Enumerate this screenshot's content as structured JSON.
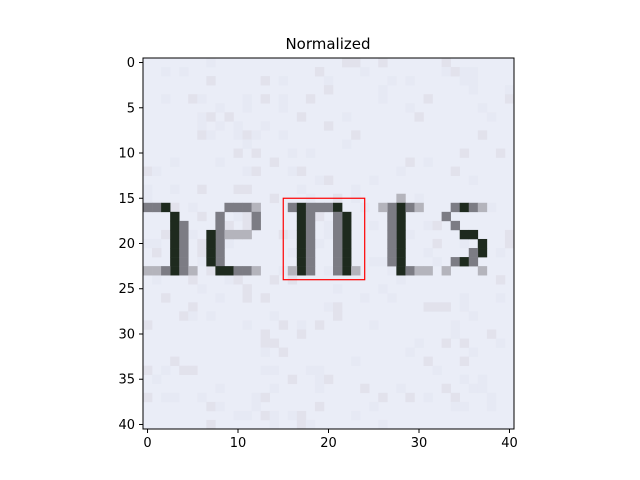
{
  "chart_data": {
    "type": "heatmap",
    "title": "Normalized",
    "xlabel": "",
    "ylabel": "",
    "x_ticks": [
      0,
      10,
      20,
      30,
      40
    ],
    "y_ticks": [
      0,
      5,
      10,
      15,
      20,
      25,
      30,
      35,
      40
    ],
    "xlim": [
      -0.5,
      40.5
    ],
    "ylim": [
      40.5,
      -0.5
    ],
    "grid": false,
    "colors": {
      "background": "#eaedf7",
      "ink": "#1e2a1e",
      "mid_gray": "#7c7c84",
      "light_gray": "#b4b4bc",
      "box": "#ff0000"
    },
    "image_grid": {
      "size": [
        41,
        41
      ],
      "text_row_range": [
        15,
        24
      ],
      "visible_glyphs": "nents"
    },
    "annotations": [
      {
        "type": "rectangle",
        "x0": 15,
        "x1": 24,
        "y0": 15,
        "y1": 24,
        "color": "#ff0000"
      }
    ]
  }
}
